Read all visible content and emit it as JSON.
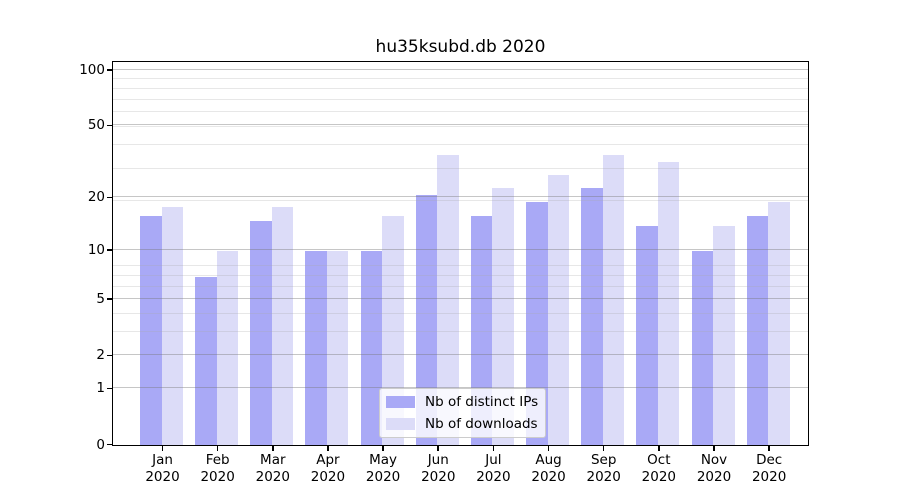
{
  "chart_data": {
    "type": "bar",
    "title": "hu35ksubd.db 2020",
    "categories": [
      "Jan",
      "Feb",
      "Mar",
      "Apr",
      "May",
      "Jun",
      "Jul",
      "Aug",
      "Sep",
      "Oct",
      "Nov",
      "Dec"
    ],
    "year_label": "2020",
    "series": [
      {
        "name": "Nb of distinct IPs",
        "color": "#a9a9f6",
        "values": [
          16,
          7,
          15,
          10,
          10,
          21,
          16,
          19,
          23,
          14,
          10,
          16
        ]
      },
      {
        "name": "Nb of downloads",
        "color": "#dcdcf8",
        "values": [
          18,
          10,
          18,
          10,
          16,
          35,
          23,
          27,
          35,
          32,
          14,
          19
        ]
      }
    ],
    "yticks": [
      0,
      1,
      2,
      5,
      10,
      20,
      50,
      100
    ],
    "ylim": [
      0,
      112
    ],
    "yscale": "log(1+v)",
    "grid": "on",
    "legend_position": "lower center",
    "legend_labels": [
      "Nb of distinct IPs",
      "Nb of downloads"
    ]
  }
}
